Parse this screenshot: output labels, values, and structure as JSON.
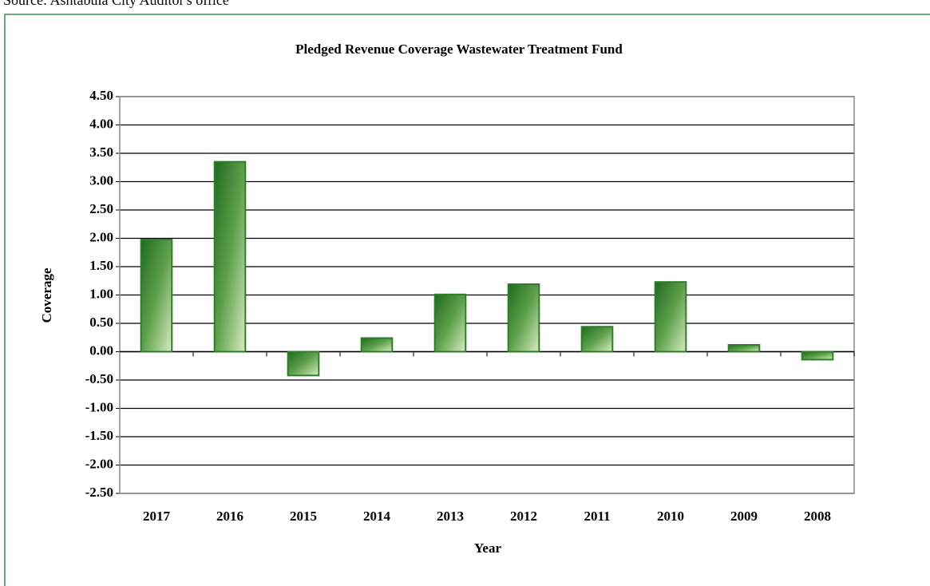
{
  "source": "Source: Ashtabula City Auditor's office",
  "chart_data": {
    "type": "bar",
    "title": "Pledged Revenue Coverage Wastewater Treatment Fund",
    "x_label": "Year",
    "y_label": "Coverage",
    "categories": [
      "2017",
      "2016",
      "2015",
      "2014",
      "2013",
      "2012",
      "2011",
      "2010",
      "2009",
      "2008"
    ],
    "values": [
      1.98,
      3.35,
      -0.42,
      0.24,
      1.01,
      1.19,
      0.44,
      1.23,
      0.12,
      -0.14
    ],
    "color": "#2f7d2a",
    "ylim": [
      -2.5,
      4.5
    ],
    "yticks": [
      {
        "value": -2.5,
        "label": "-2.50"
      },
      {
        "value": -2,
        "label": "-2.00"
      },
      {
        "value": -1.5,
        "label": "-1.50"
      },
      {
        "value": -1,
        "label": "-1.00"
      },
      {
        "value": -0.5,
        "label": "-0.50"
      },
      {
        "value": 0,
        "label": "0.00"
      },
      {
        "value": 0.5,
        "label": "0.50"
      },
      {
        "value": 1,
        "label": "1.00"
      },
      {
        "value": 1.5,
        "label": "1.50"
      },
      {
        "value": 2,
        "label": "2.00"
      },
      {
        "value": 2.5,
        "label": "2.50"
      },
      {
        "value": 3,
        "label": "3.00"
      },
      {
        "value": 3.5,
        "label": "3.50"
      },
      {
        "value": 4,
        "label": "4.00"
      },
      {
        "value": 4.5,
        "label": "4.50"
      }
    ],
    "grid": true
  }
}
